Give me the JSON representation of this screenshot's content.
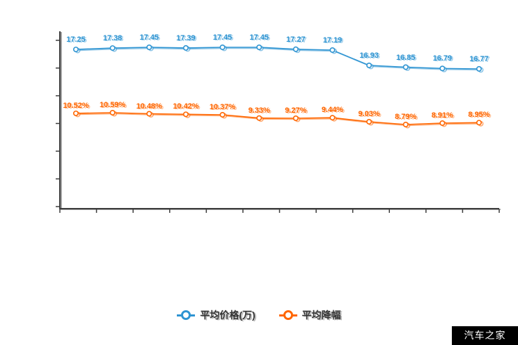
{
  "chart_data": {
    "type": "line",
    "title": "",
    "xlabel": "",
    "ylabel": "",
    "grid": false,
    "legend_position": "bottom",
    "axes": {
      "y_tick_count": 7,
      "x_tick_count": 13,
      "tick_labels_visible": false,
      "axis_color": "#3c3c3c"
    },
    "series": [
      {
        "name": "平均价格(万)",
        "color": "#2e94d2",
        "values": [
          17.25,
          17.38,
          17.45,
          17.39,
          17.45,
          17.45,
          17.27,
          17.19,
          16.93,
          16.85,
          16.79,
          16.77
        ],
        "labels": [
          "17.25",
          "17.38",
          "17.45",
          "17.39",
          "17.45",
          "17.45",
          "17.27",
          "17.19",
          "16.93",
          "16.85",
          "16.79",
          "16.77"
        ]
      },
      {
        "name": "平均降幅",
        "color": "#ff6600",
        "values": [
          10.52,
          10.59,
          10.48,
          10.42,
          10.37,
          9.33,
          9.27,
          9.44,
          9.03,
          8.79,
          8.91,
          8.95
        ],
        "labels": [
          "10.52%",
          "10.59%",
          "10.48%",
          "10.42%",
          "10.37%",
          "9.33%",
          "9.27%",
          "9.44%",
          "9.03%",
          "8.79%",
          "8.91%",
          "8.95%"
        ]
      }
    ]
  },
  "legend": {
    "items": [
      {
        "label": "平均价格(万)",
        "color": "#2e94d2"
      },
      {
        "label": "平均降幅",
        "color": "#ff6600"
      }
    ]
  },
  "watermark": {
    "text": "汽车之家",
    "bg": "#000000",
    "fg": "#ffffff"
  }
}
